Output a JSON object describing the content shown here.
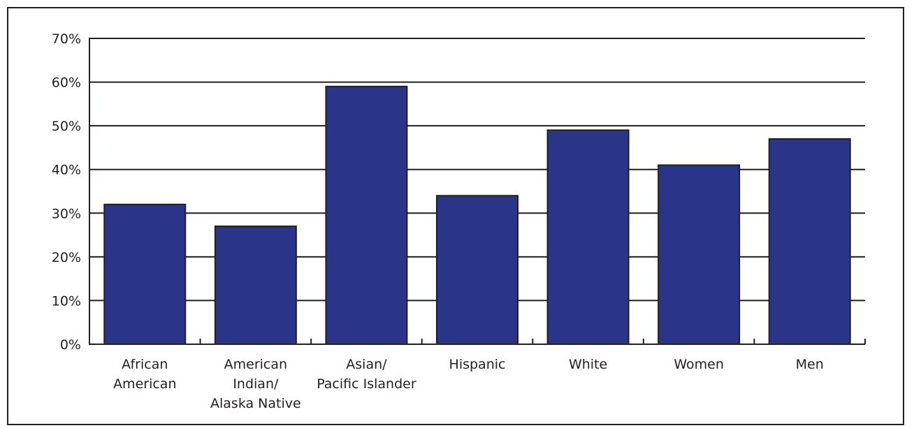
{
  "chart_data": {
    "type": "bar",
    "title": "",
    "xlabel": "",
    "ylabel": "",
    "ylim": [
      0,
      70
    ],
    "yticks": [
      0,
      10,
      20,
      30,
      40,
      50,
      60,
      70
    ],
    "ytick_labels": [
      "0%",
      "10%",
      "20%",
      "30%",
      "40%",
      "50%",
      "60%",
      "70%"
    ],
    "grid": true,
    "bar_color": "#2a3589",
    "categories": [
      [
        "African",
        "American"
      ],
      [
        "American",
        "Indian/",
        "Alaska Native"
      ],
      [
        "Asian/",
        "Pacific Islander"
      ],
      [
        "Hispanic"
      ],
      [
        "White"
      ],
      [
        "Women"
      ],
      [
        "Men"
      ]
    ],
    "values": [
      32,
      27,
      59,
      34,
      49,
      41,
      47
    ]
  }
}
